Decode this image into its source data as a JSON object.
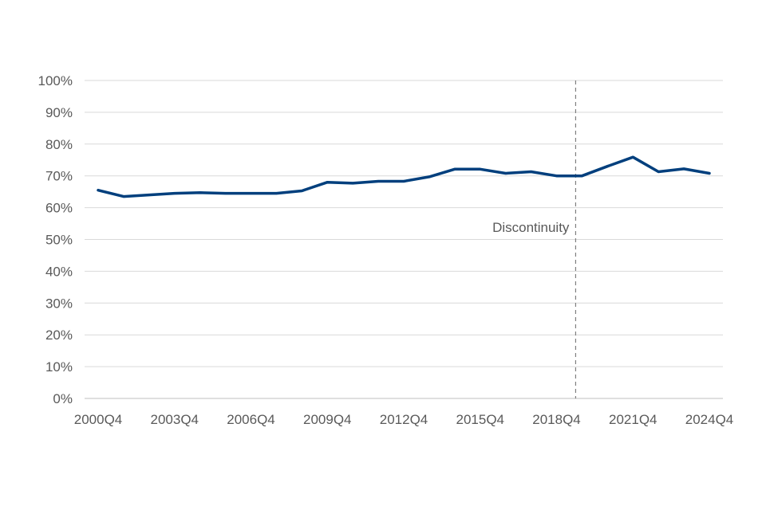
{
  "chart_data": {
    "type": "line",
    "title": "",
    "xlabel": "",
    "ylabel": "",
    "ylim": [
      0,
      100
    ],
    "y_ticks": [
      "0%",
      "10%",
      "20%",
      "30%",
      "40%",
      "50%",
      "60%",
      "70%",
      "80%",
      "90%",
      "100%"
    ],
    "x": [
      "2000Q4",
      "2001Q4",
      "2002Q4",
      "2003Q4",
      "2004Q4",
      "2005Q4",
      "2006Q4",
      "2007Q4",
      "2008Q4",
      "2009Q4",
      "2010Q4",
      "2011Q4",
      "2012Q4",
      "2013Q4",
      "2014Q4",
      "2015Q4",
      "2016Q4",
      "2017Q4",
      "2018Q4",
      "2019Q4",
      "2020Q4",
      "2021Q4",
      "2022Q4",
      "2023Q4",
      "2024Q4"
    ],
    "x_tick_labels": [
      "2000Q4",
      "2003Q4",
      "2006Q4",
      "2009Q4",
      "2012Q4",
      "2015Q4",
      "2018Q4",
      "2021Q4",
      "2024Q4"
    ],
    "series": [
      {
        "values": [
          65.5,
          63.5,
          64.0,
          64.5,
          64.7,
          64.5,
          64.5,
          64.5,
          65.3,
          68.0,
          67.7,
          68.3,
          68.3,
          69.7,
          72.1,
          72.1,
          70.8,
          71.3,
          70.0,
          70.0,
          73.0,
          75.9,
          71.3,
          72.2,
          70.8
        ],
        "color": "#003F7D"
      }
    ],
    "grid": true,
    "legend": "none",
    "annotations": [
      {
        "type": "vertical-dashed-line",
        "x": "2019Q3",
        "text": "Discontinuity",
        "color": "#7F7F7F"
      }
    ]
  }
}
